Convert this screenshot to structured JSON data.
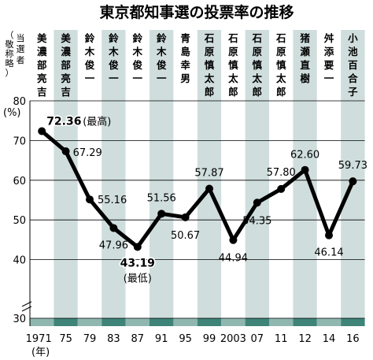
{
  "chart_data": {
    "type": "line",
    "title": "東京都知事選の投票率の推移",
    "header_label": "当選者（敬称略）",
    "y_unit": "(%)",
    "x_unit": "(年)",
    "x_ticks": [
      "1971",
      "75",
      "79",
      "83",
      "87",
      "91",
      "95",
      "99",
      "2003",
      "07",
      "11",
      "12",
      "14",
      "16"
    ],
    "winners": [
      "美濃部亮吉",
      "美濃部亮吉",
      "鈴木俊一",
      "鈴木俊一",
      "鈴木俊一",
      "鈴木俊一",
      "青島幸男",
      "石原慎太郎",
      "石原慎太郎",
      "石原慎太郎",
      "石原慎太郎",
      "猪瀬直樹",
      "舛添要一",
      "小池百合子"
    ],
    "values": [
      72.36,
      67.29,
      55.16,
      47.96,
      43.19,
      51.56,
      50.67,
      57.87,
      44.94,
      54.35,
      57.8,
      62.6,
      46.14,
      59.73
    ],
    "value_labels": [
      "72.36",
      "67.29",
      "55.16",
      "47.96",
      "43.19",
      "51.56",
      "50.67",
      "57.87",
      "44.94",
      "54.35",
      "57.80",
      "62.60",
      "46.14",
      "59.73"
    ],
    "annotations": {
      "max_note": "(最高)",
      "min_note": "(最低)"
    },
    "y_ticks": [
      "80",
      "70",
      "60",
      "50",
      "40",
      "30"
    ],
    "ylim": [
      30,
      80
    ],
    "axis_break": true,
    "grid": true,
    "colors": {
      "line": "#000000",
      "band_light": "#ffffff",
      "band_dark": "#cfdedd",
      "floor_light": "#8fb7b0",
      "floor_dark": "#3f8478"
    }
  }
}
